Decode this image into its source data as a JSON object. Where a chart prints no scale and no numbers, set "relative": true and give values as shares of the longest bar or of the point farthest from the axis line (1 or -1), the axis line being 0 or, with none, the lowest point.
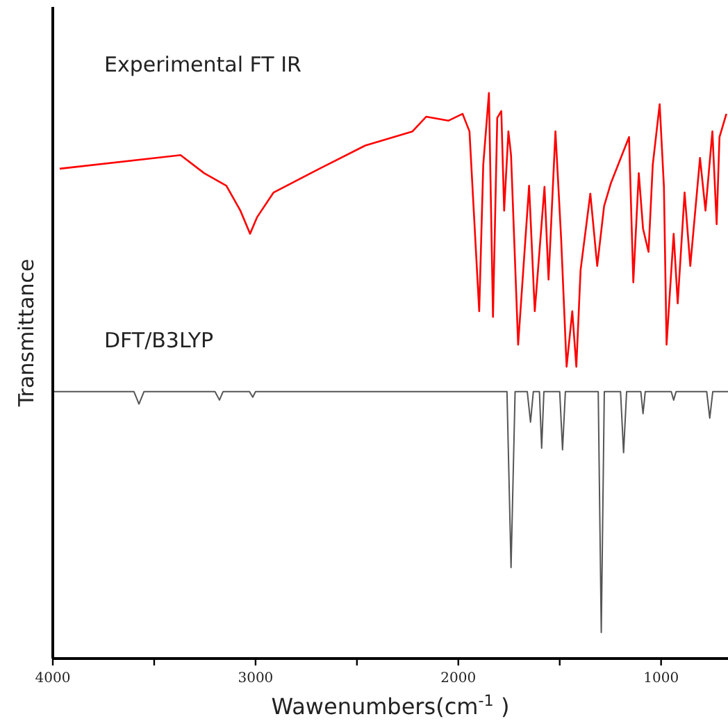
{
  "chart_data": {
    "type": "line",
    "relative": true,
    "xlabel": "Wawenumbers(cm$^{-1}$)",
    "ylabel": "Transmittance",
    "xlim": [
      4000,
      670
    ],
    "xticks": [
      4000,
      {
        "value": 3500,
        "label": null
      },
      3000,
      {
        "value": 2500,
        "label": null
      },
      2000,
      {
        "value": 1500,
        "label": null
      },
      1000
    ],
    "tick_labels": "x",
    "annotations": [
      "Experimental FT IR",
      "DFT/B3LYP"
    ],
    "series": [
      {
        "color": "#ff0000",
        "x": [
          3966,
          3370,
          3253,
          3144,
          3075,
          3027,
          2993,
          2911,
          2685,
          2459,
          2226,
          2158,
          2048,
          1979,
          1945,
          1897,
          1877,
          1849,
          1829,
          1808,
          1788,
          1774,
          1753,
          1740,
          1705,
          1651,
          1623,
          1575,
          1555,
          1521,
          1493,
          1466,
          1438,
          1418,
          1397,
          1349,
          1315,
          1281,
          1247,
          1158,
          1137,
          1110,
          1089,
          1062,
          1041,
          1007,
          986,
          973,
          938,
          918,
          884,
          856,
          808,
          781,
          747,
          726,
          712,
          678
        ],
        "values": [
          0.866,
          0.89,
          0.858,
          0.836,
          0.792,
          0.751,
          0.78,
          0.824,
          0.866,
          0.907,
          0.932,
          0.958,
          0.951,
          0.963,
          0.932,
          0.614,
          0.873,
          1,
          0.604,
          0.956,
          0.968,
          0.792,
          0.932,
          0.89,
          0.555,
          0.836,
          0.614,
          0.834,
          0.67,
          0.932,
          0.743,
          0.516,
          0.614,
          0.516,
          0.687,
          0.822,
          0.694,
          0.8,
          0.841,
          0.922,
          0.665,
          0.858,
          0.76,
          0.719,
          0.873,
          0.98,
          0.834,
          0.555,
          0.751,
          0.628,
          0.824,
          0.694,
          0.885,
          0.792,
          0.932,
          0.768,
          0.922,
          0.963
        ]
      },
      {
        "color": "#555555",
        "x": [
          4000,
          3600,
          3575,
          3550,
          3200,
          3178,
          3160,
          3030,
          3014,
          3000,
          1760,
          1740,
          1720,
          1660,
          1644,
          1630,
          1600,
          1589,
          1578,
          1500,
          1486,
          1472,
          1310,
          1295,
          1280,
          1200,
          1185,
          1170,
          1100,
          1089,
          1078,
          950,
          938,
          926,
          775,
          760,
          745,
          670
        ],
        "values": [
          0.472,
          0.472,
          0.45,
          0.472,
          0.472,
          0.457,
          0.472,
          0.472,
          0.462,
          0.472,
          0.472,
          0.161,
          0.472,
          0.472,
          0.418,
          0.472,
          0.472,
          0.372,
          0.472,
          0.472,
          0.369,
          0.472,
          0.472,
          0.046,
          0.472,
          0.472,
          0.364,
          0.472,
          0.472,
          0.433,
          0.472,
          0.472,
          0.457,
          0.472,
          0.472,
          0.425,
          0.472,
          0.472
        ]
      }
    ]
  }
}
